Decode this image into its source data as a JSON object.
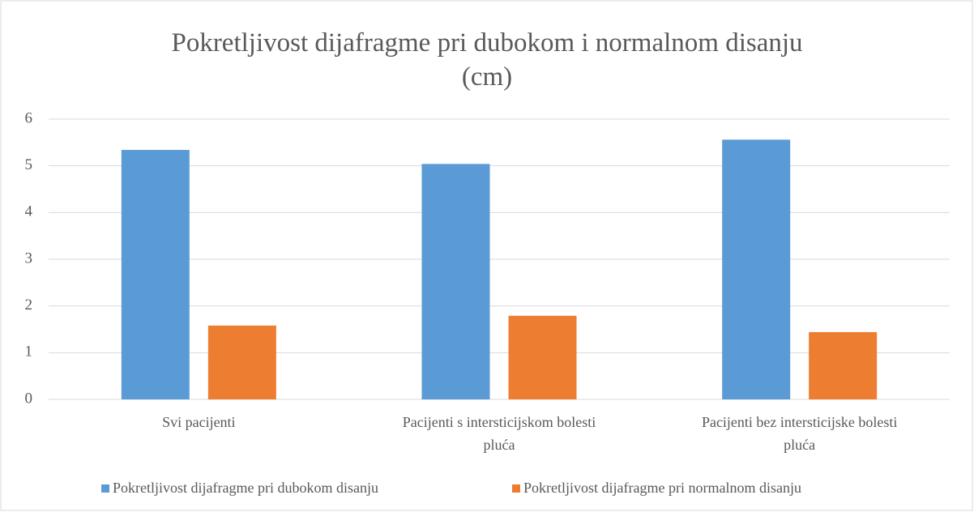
{
  "chart_data": {
    "type": "bar",
    "title": "Pokretljivost dijafragme pri dubokom i normalnom disanju (cm)",
    "categories": [
      "Svi pacijenti",
      "Pacijenti s intersticijskom bolesti pluća",
      "Pacijenti bez intersticijske bolesti pluća"
    ],
    "series": [
      {
        "name": "Pokretljivost dijafragme pri dubokom disanju",
        "color": "#5b9bd5",
        "values": [
          5.34,
          5.04,
          5.56
        ]
      },
      {
        "name": "Pokretljivost dijafragme pri normalnom disanju",
        "color": "#ed7d31",
        "values": [
          1.58,
          1.79,
          1.44
        ]
      }
    ],
    "ylim": [
      0,
      6
    ],
    "yticks": [
      0,
      1,
      2,
      3,
      4,
      5,
      6
    ],
    "grid": true,
    "legend": "bottom"
  }
}
